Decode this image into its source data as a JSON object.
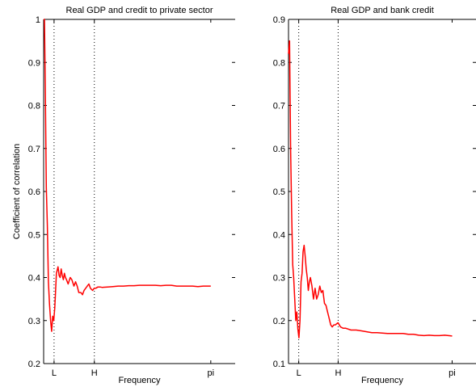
{
  "chart_data": [
    {
      "type": "line",
      "title": "Real GDP and credit to private sector",
      "xlabel": "Frequency",
      "ylabel": "Coefficient of correlation",
      "ylim": [
        0.2,
        1.0
      ],
      "xlim": [
        0,
        3.6
      ],
      "y_ticks": [
        "0.2",
        "0.3",
        "0.4",
        "0.5",
        "0.6",
        "0.7",
        "0.8",
        "0.9",
        "1"
      ],
      "x_ticks": [
        {
          "label": "L",
          "value": 0.196
        },
        {
          "label": "H",
          "value": 0.953
        },
        {
          "label": "pi",
          "value": 3.1416
        }
      ],
      "reference_lines": [
        0.196,
        0.953
      ],
      "series": [
        {
          "color": "#ff0000",
          "x": [
            0.0,
            0.015,
            0.03,
            0.05,
            0.07,
            0.09,
            0.11,
            0.13,
            0.15,
            0.17,
            0.19,
            0.21,
            0.24,
            0.27,
            0.29,
            0.31,
            0.33,
            0.35,
            0.37,
            0.39,
            0.41,
            0.43,
            0.46,
            0.5,
            0.53,
            0.57,
            0.6,
            0.63,
            0.66,
            0.7,
            0.73,
            0.76,
            0.79,
            0.82,
            0.85,
            0.88,
            0.92,
            0.95,
            0.98,
            1.02,
            1.06,
            1.1,
            1.2,
            1.3,
            1.4,
            1.5,
            1.6,
            1.7,
            1.8,
            1.9,
            2.0,
            2.1,
            2.2,
            2.3,
            2.4,
            2.5,
            2.6,
            2.7,
            2.8,
            2.9,
            3.0,
            3.1416
          ],
          "values": [
            1.0,
            1.0,
            0.85,
            0.61,
            0.52,
            0.39,
            0.34,
            0.3,
            0.275,
            0.31,
            0.3,
            0.33,
            0.41,
            0.425,
            0.405,
            0.4,
            0.42,
            0.405,
            0.395,
            0.41,
            0.4,
            0.395,
            0.385,
            0.4,
            0.395,
            0.38,
            0.39,
            0.38,
            0.365,
            0.365,
            0.36,
            0.37,
            0.375,
            0.38,
            0.385,
            0.375,
            0.37,
            0.375,
            0.375,
            0.378,
            0.378,
            0.377,
            0.378,
            0.379,
            0.38,
            0.38,
            0.381,
            0.381,
            0.382,
            0.382,
            0.382,
            0.382,
            0.381,
            0.382,
            0.382,
            0.38,
            0.38,
            0.38,
            0.38,
            0.379,
            0.38,
            0.38
          ]
        }
      ]
    },
    {
      "type": "line",
      "title": "Real GDP and bank credit",
      "xlabel": "Frequency",
      "ylabel": "",
      "ylim": [
        0.1,
        0.9
      ],
      "xlim": [
        0,
        3.6
      ],
      "y_ticks": [
        "0.1",
        "0.2",
        "0.3",
        "0.4",
        "0.5",
        "0.6",
        "0.7",
        "0.8",
        "0.9"
      ],
      "x_ticks": [
        {
          "label": "L",
          "value": 0.196
        },
        {
          "label": "H",
          "value": 0.953
        },
        {
          "label": "pi",
          "value": 3.1416
        }
      ],
      "reference_lines": [
        0.196,
        0.953
      ],
      "series": [
        {
          "color": "#ff0000",
          "x": [
            0.0,
            0.02,
            0.04,
            0.06,
            0.08,
            0.1,
            0.12,
            0.14,
            0.16,
            0.18,
            0.2,
            0.22,
            0.24,
            0.26,
            0.28,
            0.3,
            0.32,
            0.34,
            0.36,
            0.38,
            0.4,
            0.42,
            0.45,
            0.48,
            0.51,
            0.54,
            0.57,
            0.6,
            0.63,
            0.66,
            0.69,
            0.72,
            0.75,
            0.78,
            0.81,
            0.84,
            0.87,
            0.9,
            0.95,
            1.0,
            1.05,
            1.1,
            1.2,
            1.3,
            1.4,
            1.5,
            1.6,
            1.7,
            1.8,
            1.9,
            2.0,
            2.1,
            2.2,
            2.3,
            2.4,
            2.5,
            2.6,
            2.7,
            2.8,
            2.9,
            3.0,
            3.1416
          ],
          "values": [
            0.82,
            0.85,
            0.6,
            0.45,
            0.33,
            0.3,
            0.25,
            0.2,
            0.22,
            0.18,
            0.16,
            0.2,
            0.29,
            0.31,
            0.36,
            0.375,
            0.35,
            0.32,
            0.3,
            0.27,
            0.29,
            0.3,
            0.28,
            0.25,
            0.275,
            0.25,
            0.26,
            0.28,
            0.265,
            0.27,
            0.24,
            0.235,
            0.22,
            0.205,
            0.19,
            0.185,
            0.19,
            0.19,
            0.195,
            0.185,
            0.182,
            0.182,
            0.178,
            0.178,
            0.176,
            0.174,
            0.172,
            0.172,
            0.171,
            0.17,
            0.17,
            0.17,
            0.17,
            0.168,
            0.168,
            0.166,
            0.165,
            0.166,
            0.165,
            0.165,
            0.166,
            0.164
          ]
        }
      ]
    }
  ]
}
